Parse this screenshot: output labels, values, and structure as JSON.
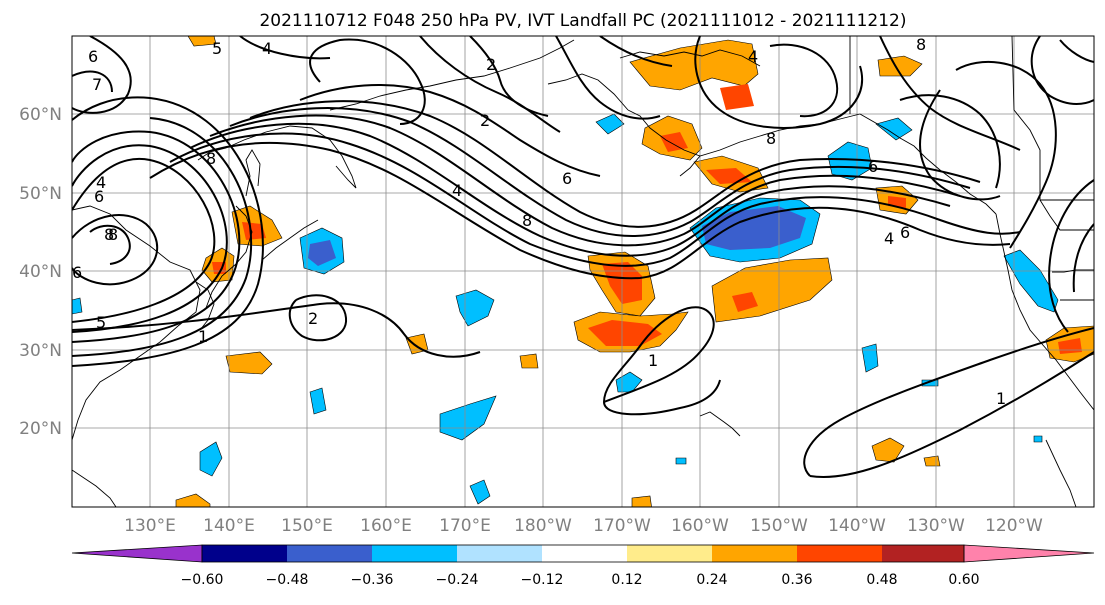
{
  "title": "2021110712 F048 250 hPa PV, IVT Landfall PC (2021111012 - 2021111212)",
  "map": {
    "lon_labels": [
      "130°E",
      "140°E",
      "150°E",
      "160°E",
      "170°E",
      "180°W",
      "170°W",
      "160°W",
      "150°W",
      "140°W",
      "130°W",
      "120°W"
    ],
    "lat_labels": [
      "60°N",
      "50°N",
      "40°N",
      "30°N",
      "20°N"
    ],
    "contour_labels": [
      "6",
      "4",
      "5",
      "7",
      "2",
      "6",
      "8",
      "4",
      "6",
      "8",
      "6",
      "4",
      "5",
      "2",
      "1",
      "2",
      "8",
      "6",
      "8",
      "4",
      "1",
      "8",
      "8",
      "4",
      "6",
      "1"
    ]
  },
  "colorbar": {
    "ticks": [
      "−0.60",
      "−0.48",
      "−0.36",
      "−0.24",
      "−0.12",
      "0.12",
      "0.24",
      "0.36",
      "0.48",
      "0.60"
    ],
    "colors": [
      "#9932cc",
      "#00008b",
      "#3a5fcd",
      "#00bfff",
      "#b0e2ff",
      "#ffffff",
      "#ffec8b",
      "#ffa500",
      "#ff4500",
      "#b22222",
      "#ff82ab"
    ]
  }
}
